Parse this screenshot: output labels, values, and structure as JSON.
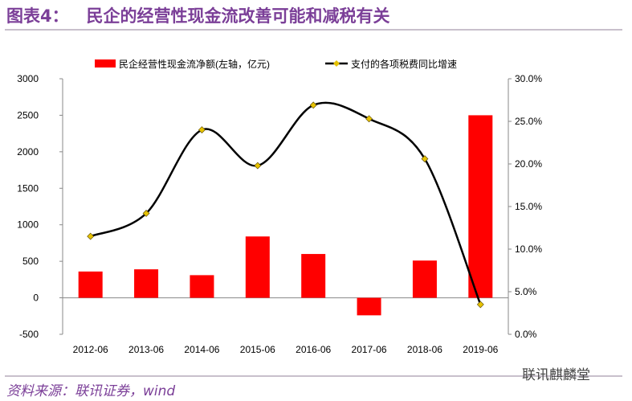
{
  "title": "图表4：   民企的经营性现金流改善可能和减税有关",
  "source": "资料来源：联讯证券，wind",
  "watermark": "联讯麒麟堂",
  "chart_data": {
    "type": "bar+line",
    "categories": [
      "2012-06",
      "2013-06",
      "2014-06",
      "2015-06",
      "2016-06",
      "2017-06",
      "2018-06",
      "2019-06"
    ],
    "series": [
      {
        "name": "民企经营性现金流净额(左轴，亿元)",
        "type": "bar",
        "axis": "left",
        "color": "#ff0000",
        "values": [
          360,
          390,
          310,
          840,
          600,
          -240,
          510,
          2500
        ]
      },
      {
        "name": "支付的各项税费同比增速",
        "type": "line",
        "axis": "right",
        "color": "#000000",
        "marker_color": "#e6c200",
        "values": [
          11.5,
          14.2,
          24.0,
          19.8,
          26.9,
          25.3,
          20.6,
          3.5
        ]
      }
    ],
    "left_axis": {
      "ylim": [
        -500,
        3000
      ],
      "ticks": [
        "-500",
        "0",
        "500",
        "1000",
        "1500",
        "2000",
        "2500",
        "3000"
      ]
    },
    "right_axis": {
      "ylim": [
        0,
        30
      ],
      "ticks": [
        "0.0%",
        "5.0%",
        "10.0%",
        "15.0%",
        "20.0%",
        "25.0%",
        "30.0%"
      ]
    },
    "legend": "top"
  }
}
